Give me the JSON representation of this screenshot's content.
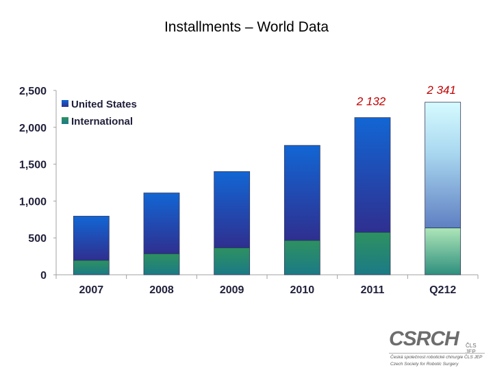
{
  "title": "Installments – World Data",
  "chart_data": {
    "type": "bar",
    "stacked": true,
    "categories": [
      "2007",
      "2008",
      "2009",
      "2010",
      "2011",
      "Q212"
    ],
    "series": [
      {
        "name": "International",
        "values": [
          195,
          285,
          365,
          465,
          575,
          635
        ],
        "color": "#2e8a6e"
      },
      {
        "name": "United States",
        "values": [
          600,
          825,
          1035,
          1290,
          1557,
          1706
        ],
        "color": "#1f52c0"
      }
    ],
    "totals": [
      795,
      1110,
      1400,
      1755,
      2132,
      2341
    ],
    "ylim": [
      0,
      2500
    ],
    "yticks": [
      0,
      500,
      1000,
      1500,
      2000,
      2500
    ],
    "ytick_labels": [
      "0",
      "500",
      "1,000",
      "1,500",
      "2,000",
      "2,500"
    ],
    "legend": [
      "United States",
      "International"
    ],
    "legend_position": "top-left",
    "annotations": [
      {
        "category": "2011",
        "text": "2 132",
        "color": "#c00000"
      },
      {
        "category": "Q212",
        "text": "2 341",
        "color": "#c00000"
      }
    ],
    "xlabel": "",
    "ylabel": ""
  },
  "logo": {
    "main": "CSRCH",
    "sub": "ČLS JEP",
    "line1": "Česká společnost robotické chirurgie ČLS JEP",
    "line2": "Czech Society for Robotic Surgery"
  }
}
